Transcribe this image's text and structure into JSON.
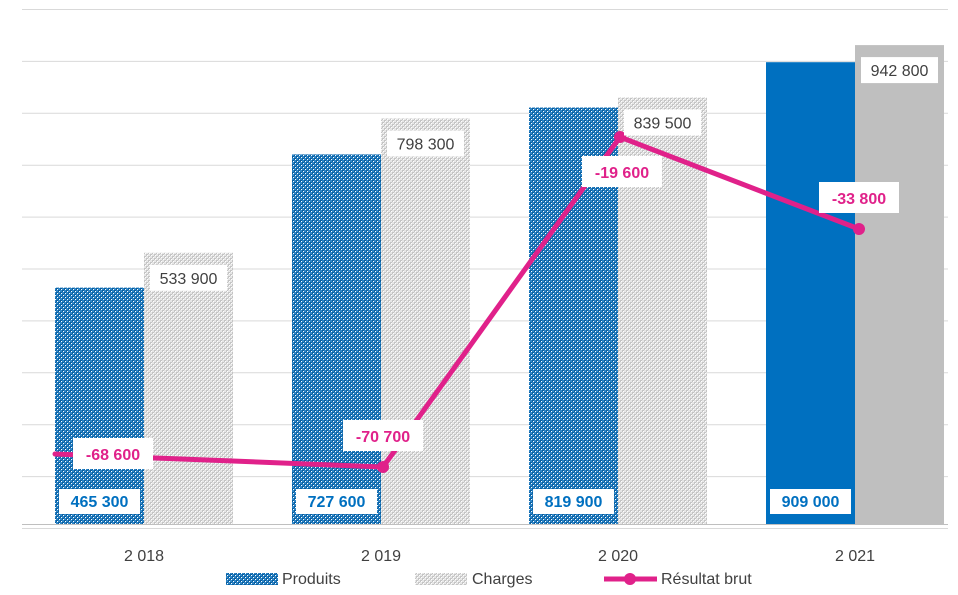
{
  "chart_data": {
    "type": "bar",
    "categories": [
      "2 018",
      "2 019",
      "2 020",
      "2 021"
    ],
    "series": [
      {
        "name": "Produits",
        "kind": "bar",
        "values": [
          465300,
          727600,
          819900,
          909000
        ],
        "labels": [
          "465 300",
          "727 600",
          "819 900",
          "909 000"
        ],
        "color": "#0070C0"
      },
      {
        "name": "Charges",
        "kind": "bar",
        "values": [
          533900,
          798300,
          839500,
          942800
        ],
        "labels": [
          "533 900",
          "798 300",
          "839 500",
          "942 800"
        ],
        "color": "#BFBFBF"
      },
      {
        "name": "Résultat  brut",
        "kind": "line",
        "values": [
          -68600,
          -70700,
          -19600,
          -33800
        ],
        "labels": [
          "-68 600",
          "-70 700",
          "-19 600",
          "-33 800"
        ],
        "color": "#E0218A"
      }
    ],
    "legend": {
      "position": "bottom",
      "entries": [
        "Produits",
        "Charges",
        "Résultat  brut"
      ]
    },
    "grid": true,
    "xlabel": "",
    "ylabel": "",
    "title": ""
  }
}
